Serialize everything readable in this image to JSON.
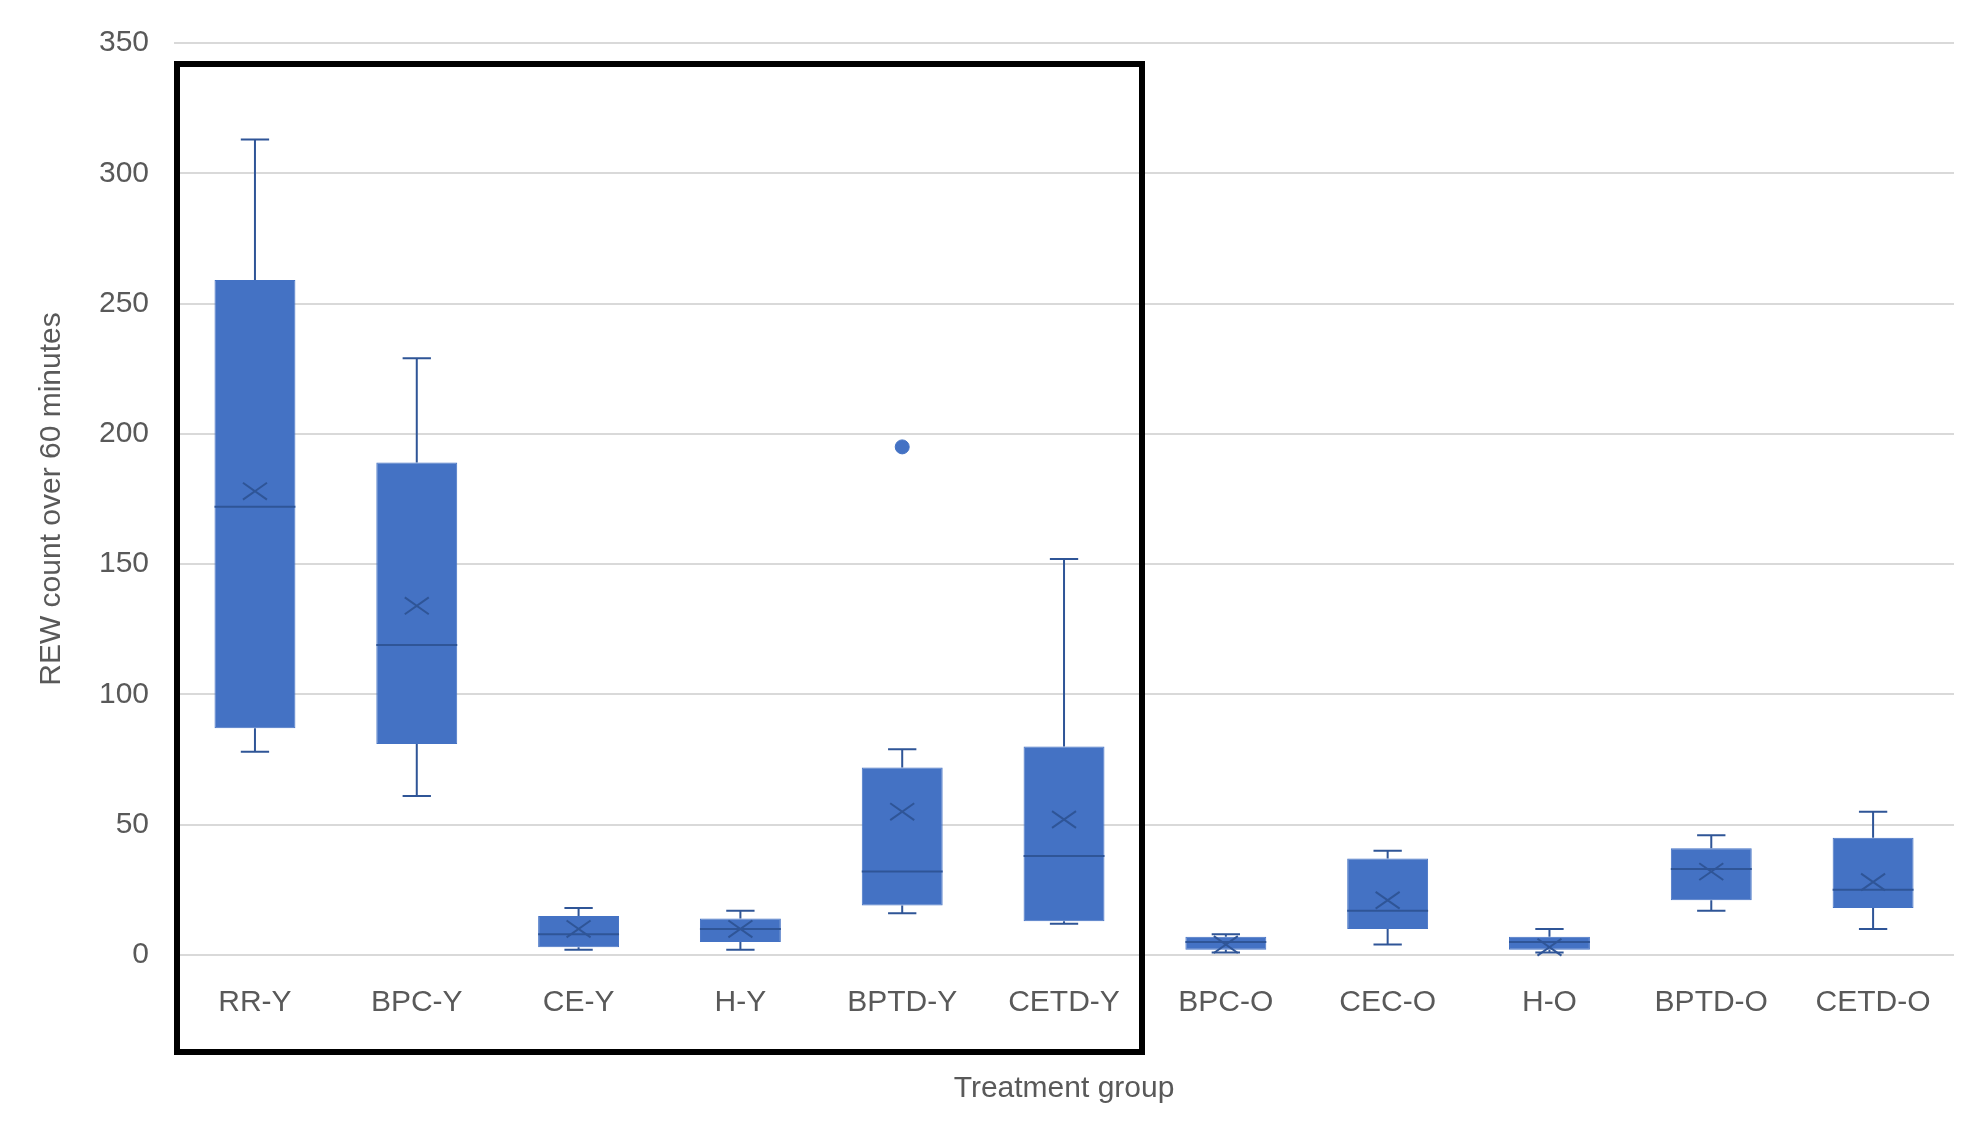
{
  "chart_data": {
    "type": "box",
    "xlabel": "Treatment group",
    "ylabel": "REW count over 60 minutes",
    "categories": [
      "RR-Y",
      "BPC-Y",
      "CE-Y",
      "H-Y",
      "BPTD-Y",
      "CETD-Y",
      "BPC-O",
      "CEC-O",
      "H-O",
      "BPTD-O",
      "CETD-O"
    ],
    "color": "#4472c4",
    "boxes": [
      {
        "low": 78,
        "q1": 87,
        "median": 172,
        "q3": 259,
        "high": 313,
        "mean": 178
      },
      {
        "low": 61,
        "q1": 81,
        "median": 119,
        "q3": 189,
        "high": 229,
        "mean": 134
      },
      {
        "low": 2,
        "q1": 3,
        "median": 8,
        "q3": 15,
        "high": 18,
        "mean": 10
      },
      {
        "low": 2,
        "q1": 5,
        "median": 10,
        "q3": 14,
        "high": 17,
        "mean": 10
      },
      {
        "low": 16,
        "q1": 19,
        "median": 32,
        "q3": 72,
        "high": 79,
        "mean": 55,
        "outliers": [
          195
        ]
      },
      {
        "low": 12,
        "q1": 13,
        "median": 38,
        "q3": 80,
        "high": 152,
        "mean": 52
      },
      {
        "low": 1,
        "q1": 2,
        "median": 5,
        "q3": 7,
        "high": 8,
        "mean": 4
      },
      {
        "low": 4,
        "q1": 10,
        "median": 17,
        "q3": 37,
        "high": 40,
        "mean": 21
      },
      {
        "low": 1,
        "q1": 2,
        "median": 5,
        "q3": 7,
        "high": 10,
        "mean": 3
      },
      {
        "low": 17,
        "q1": 21,
        "median": 33,
        "q3": 41,
        "high": 46,
        "mean": 32
      },
      {
        "low": 10,
        "q1": 18,
        "median": 25,
        "q3": 45,
        "high": 55,
        "mean": 28
      }
    ],
    "ylim": [
      0,
      350
    ],
    "yticks": [
      0,
      50,
      100,
      150,
      200,
      250,
      300,
      350
    ],
    "grid": "y",
    "legend": false
  }
}
